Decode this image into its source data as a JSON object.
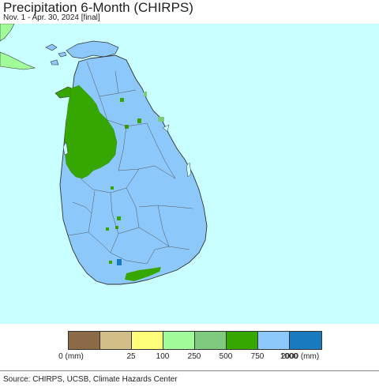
{
  "header": {
    "title": "Precipitation 6-Month (CHIRPS)",
    "subtitle": "Nov. 1 - Apr. 30, 2024 [final]"
  },
  "legend": {
    "colors": [
      "#8b6b47",
      "#d2bf88",
      "#fffe7a",
      "#a0fd9a",
      "#7dc97e",
      "#36a600",
      "#8cc8fa",
      "#1a7ac0"
    ],
    "labels": [
      "0 (mm)",
      "25",
      "100",
      "250",
      "500",
      "750",
      "1000",
      "2000 (mm)"
    ]
  },
  "colors": {
    "ocean": "#c9ffff",
    "land_main": "#8cc8fa",
    "land_dry": "#36a600",
    "land_mid": "#7dc97e",
    "land_wet": "#1a7ac0",
    "india": "#a0fd9a"
  },
  "footer": {
    "source": "Source: CHIRPS, UCSB, Climate Hazards Center"
  }
}
